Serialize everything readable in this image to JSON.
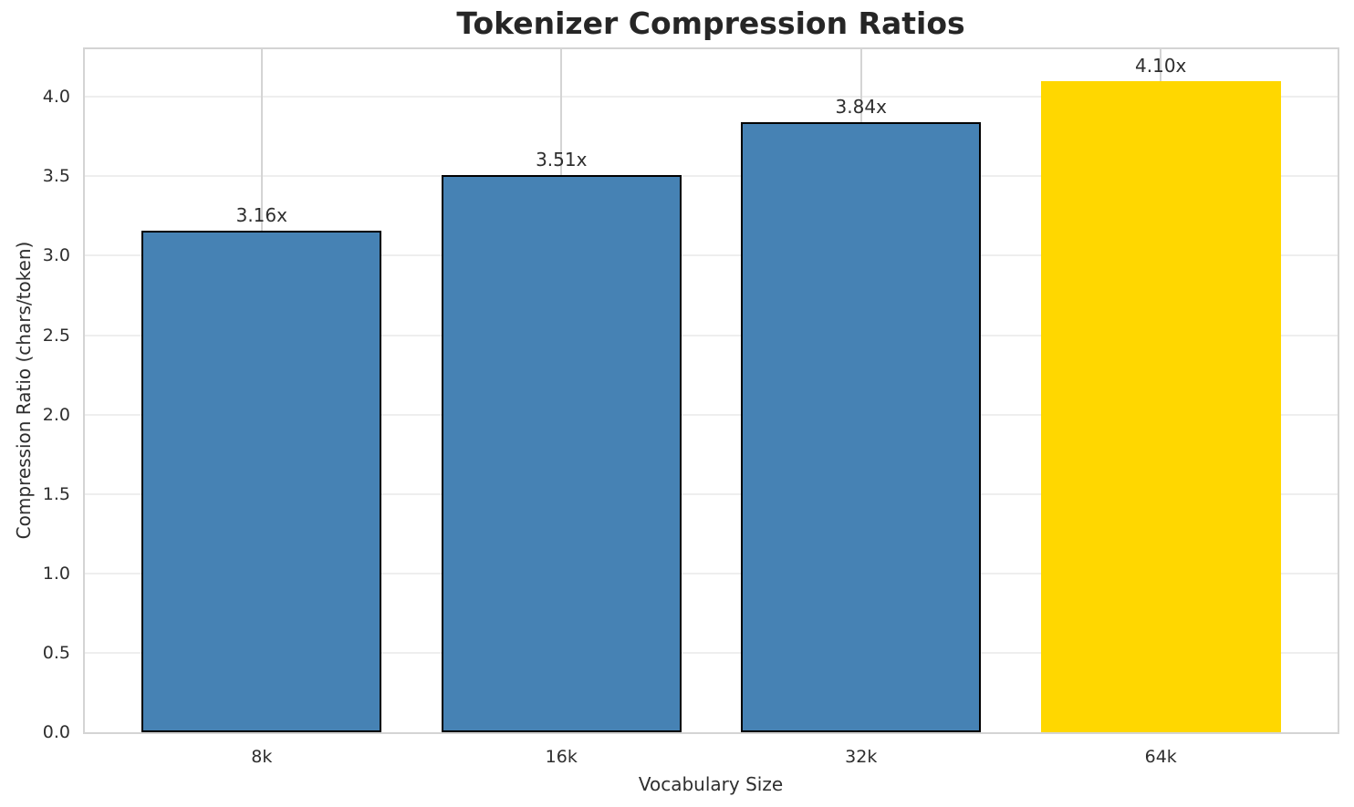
{
  "chart_data": {
    "type": "bar",
    "title": "Tokenizer Compression Ratios",
    "xlabel": "Vocabulary Size",
    "ylabel": "Compression Ratio (chars/token)",
    "categories": [
      "8k",
      "16k",
      "32k",
      "64k"
    ],
    "values": [
      3.16,
      3.51,
      3.84,
      4.1
    ],
    "bar_labels": [
      "3.16x",
      "3.51x",
      "3.84x",
      "4.10x"
    ],
    "bar_colors": [
      "#4682B4",
      "#4682B4",
      "#4682B4",
      "#FFD700"
    ],
    "bar_edge_colors": [
      "#000000",
      "#000000",
      "#000000",
      "none"
    ],
    "ylim": [
      0,
      4.3
    ],
    "yticks": [
      0.0,
      0.5,
      1.0,
      1.5,
      2.0,
      2.5,
      3.0,
      3.5,
      4.0
    ],
    "ytick_labels": [
      "0.0",
      "0.5",
      "1.0",
      "1.5",
      "2.0",
      "2.5",
      "3.0",
      "3.5",
      "4.0"
    ],
    "grid": true,
    "legend_position": "none",
    "colors": {
      "default_bar": "#4682B4",
      "highlight_bar": "#FFD700",
      "bar_edge": "#000000",
      "h_gridline": "#eeeeee",
      "v_gridline": "#d4d4d4",
      "spine": "#d4d4d4",
      "text": "#2e2e2e",
      "title_text": "#262626"
    }
  }
}
